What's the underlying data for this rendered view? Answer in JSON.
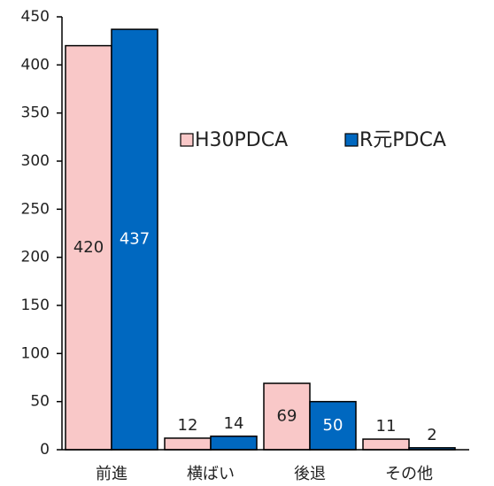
{
  "chart_data": {
    "type": "bar",
    "categories": [
      "前進",
      "横ばい",
      "後退",
      "その他"
    ],
    "series": [
      {
        "name": "H30PDCA",
        "color": "#f9c8c8",
        "values": [
          420,
          12,
          69,
          11
        ]
      },
      {
        "name": "R元PDCA",
        "color": "#0068c0",
        "values": [
          437,
          14,
          50,
          2
        ]
      }
    ],
    "ylim": [
      0,
      450
    ],
    "yticks": [
      0,
      50,
      100,
      150,
      200,
      250,
      300,
      350,
      400,
      450
    ],
    "grid": false,
    "legend": "right"
  }
}
